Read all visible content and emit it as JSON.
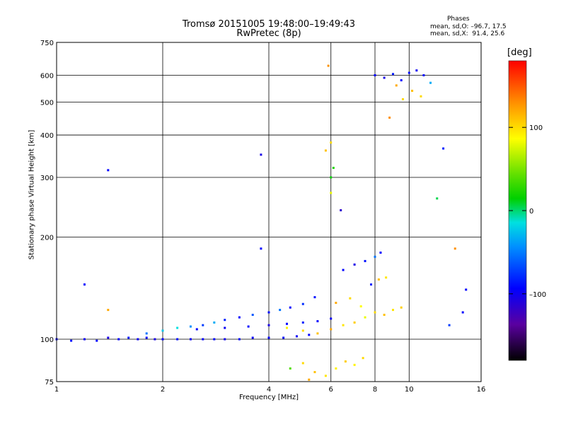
{
  "header": {
    "title": "Tromsø 20151005 19:48:00–19:49:43",
    "subtitle": "RwPretec (8p)",
    "stats_heading": "Phases",
    "stats_o": "mean, sd,O: –96.7, 17.5",
    "stats_x": "mean, sd,X:  91.4, 25.6"
  },
  "colorbar": {
    "unit": "[deg]",
    "tick_labels": [
      "100",
      "0",
      "–100"
    ],
    "tick_values": [
      100,
      0,
      -100
    ],
    "range": [
      -180,
      180
    ]
  },
  "chart_data": {
    "type": "scatter",
    "title": "Tromsø 20151005 19:48:00–19:49:43",
    "subtitle": "RwPretec (8p)",
    "xlabel": "Frequency [MHz]",
    "ylabel": "Stationary phase Virtual Height [km]",
    "x_scale": "log",
    "y_scale": "log",
    "xlim": [
      1,
      16
    ],
    "ylim": [
      75,
      750
    ],
    "x_ticks": [
      1,
      2,
      4,
      6,
      8,
      10,
      16
    ],
    "x_tick_labels": [
      "1",
      "2",
      "4",
      "6",
      "8",
      "10",
      "16"
    ],
    "y_ticks": [
      75,
      100,
      200,
      300,
      400,
      500,
      600,
      750
    ],
    "y_tick_labels": [
      "75",
      "100",
      "200",
      "300",
      "400",
      "500",
      "600",
      "750"
    ],
    "grid": true,
    "color_scale": "phase [deg], rainbow",
    "series": [
      {
        "points": [
          [
            1.0,
            100,
            -100
          ],
          [
            1.1,
            99,
            -95
          ],
          [
            1.2,
            100,
            -105
          ],
          [
            1.3,
            99,
            -98
          ],
          [
            1.4,
            101,
            -110
          ],
          [
            1.5,
            100,
            -100
          ],
          [
            1.6,
            101,
            -92
          ],
          [
            1.7,
            100,
            -105
          ],
          [
            1.8,
            101,
            -99
          ],
          [
            1.9,
            100,
            -110
          ],
          [
            2.0,
            100,
            -100
          ],
          [
            2.2,
            100,
            -96
          ],
          [
            2.4,
            100,
            -104
          ],
          [
            2.6,
            100,
            -101
          ],
          [
            2.8,
            100,
            -99
          ],
          [
            3.0,
            100,
            -107
          ],
          [
            3.3,
            100,
            -98
          ],
          [
            3.6,
            101,
            -102
          ],
          [
            4.0,
            101,
            -100
          ],
          [
            4.4,
            101,
            -96
          ],
          [
            4.8,
            102,
            -104
          ],
          [
            5.2,
            103,
            -100
          ]
        ]
      },
      {
        "points": [
          [
            1.8,
            104,
            -60
          ],
          [
            2.0,
            106,
            -30
          ],
          [
            2.2,
            108,
            -20
          ],
          [
            2.4,
            109,
            -50
          ],
          [
            2.6,
            110,
            -80
          ],
          [
            2.8,
            112,
            -40
          ],
          [
            3.0,
            114,
            -90
          ],
          [
            3.3,
            116,
            -100
          ],
          [
            3.6,
            118,
            -70
          ],
          [
            4.0,
            120,
            -95
          ],
          [
            4.3,
            122,
            -60
          ],
          [
            4.6,
            124,
            -100
          ],
          [
            5.0,
            127,
            -85
          ],
          [
            5.4,
            133,
            -95
          ]
        ]
      },
      {
        "points": [
          [
            2.5,
            107,
            -100
          ],
          [
            3.0,
            108,
            -105
          ],
          [
            3.5,
            109,
            -98
          ],
          [
            4.0,
            110,
            -110
          ],
          [
            4.5,
            111,
            -100
          ],
          [
            5.0,
            112,
            -90
          ],
          [
            5.5,
            113,
            -100
          ],
          [
            6.0,
            115,
            -105
          ]
        ]
      },
      {
        "points": [
          [
            4.5,
            108,
            90
          ],
          [
            5.0,
            106,
            100
          ],
          [
            5.5,
            104,
            110
          ],
          [
            6.0,
            107,
            120
          ],
          [
            6.5,
            110,
            95
          ],
          [
            7.0,
            112,
            105
          ],
          [
            7.5,
            116,
            80
          ],
          [
            8.0,
            120,
            100
          ],
          [
            8.5,
            118,
            110
          ],
          [
            9.0,
            122,
            95
          ],
          [
            9.5,
            124,
            105
          ],
          [
            6.2,
            128,
            120
          ],
          [
            6.8,
            132,
            100
          ],
          [
            7.3,
            125,
            85
          ]
        ]
      },
      {
        "points": [
          [
            5.0,
            85,
            100
          ],
          [
            5.4,
            80,
            110
          ],
          [
            5.8,
            78,
            95
          ],
          [
            6.2,
            82,
            90
          ],
          [
            6.6,
            86,
            105
          ],
          [
            7.0,
            84,
            90
          ],
          [
            7.4,
            88,
            100
          ],
          [
            4.6,
            82,
            40
          ],
          [
            5.2,
            76,
            120
          ]
        ]
      },
      {
        "points": [
          [
            6.5,
            160,
            -100
          ],
          [
            7.0,
            166,
            -110
          ],
          [
            7.5,
            170,
            -95
          ],
          [
            8.0,
            175,
            -60
          ],
          [
            8.3,
            180,
            -100
          ],
          [
            7.8,
            145,
            -90
          ],
          [
            8.2,
            150,
            110
          ],
          [
            8.6,
            152,
            95
          ]
        ]
      },
      {
        "points": [
          [
            8.0,
            600,
            -100
          ],
          [
            8.5,
            590,
            -110
          ],
          [
            9.0,
            605,
            -90
          ],
          [
            9.5,
            580,
            -100
          ],
          [
            10.0,
            610,
            -95
          ],
          [
            10.5,
            620,
            -105
          ],
          [
            11.0,
            600,
            -98
          ],
          [
            9.2,
            560,
            120
          ],
          [
            10.2,
            540,
            110
          ],
          [
            10.8,
            520,
            100
          ],
          [
            8.8,
            450,
            130
          ],
          [
            9.6,
            510,
            100
          ]
        ]
      },
      {
        "points": [
          [
            1.4,
            315,
            -100
          ],
          [
            3.8,
            350,
            -110
          ],
          [
            6.0,
            380,
            100
          ],
          [
            5.9,
            640,
            130
          ],
          [
            5.8,
            360,
            110
          ],
          [
            6.0,
            270,
            80
          ],
          [
            6.1,
            320,
            20
          ],
          [
            6.4,
            240,
            -120
          ],
          [
            3.8,
            185,
            -100
          ],
          [
            1.2,
            145,
            -100
          ],
          [
            1.4,
            122,
            120
          ],
          [
            12.5,
            365,
            -90
          ],
          [
            13.5,
            185,
            130
          ],
          [
            14.5,
            140,
            -100
          ],
          [
            14.2,
            120,
            -100
          ],
          [
            13.0,
            110,
            -80
          ],
          [
            12.0,
            260,
            0
          ],
          [
            11.5,
            570,
            -40
          ],
          [
            6.0,
            300,
            10
          ]
        ]
      }
    ]
  }
}
